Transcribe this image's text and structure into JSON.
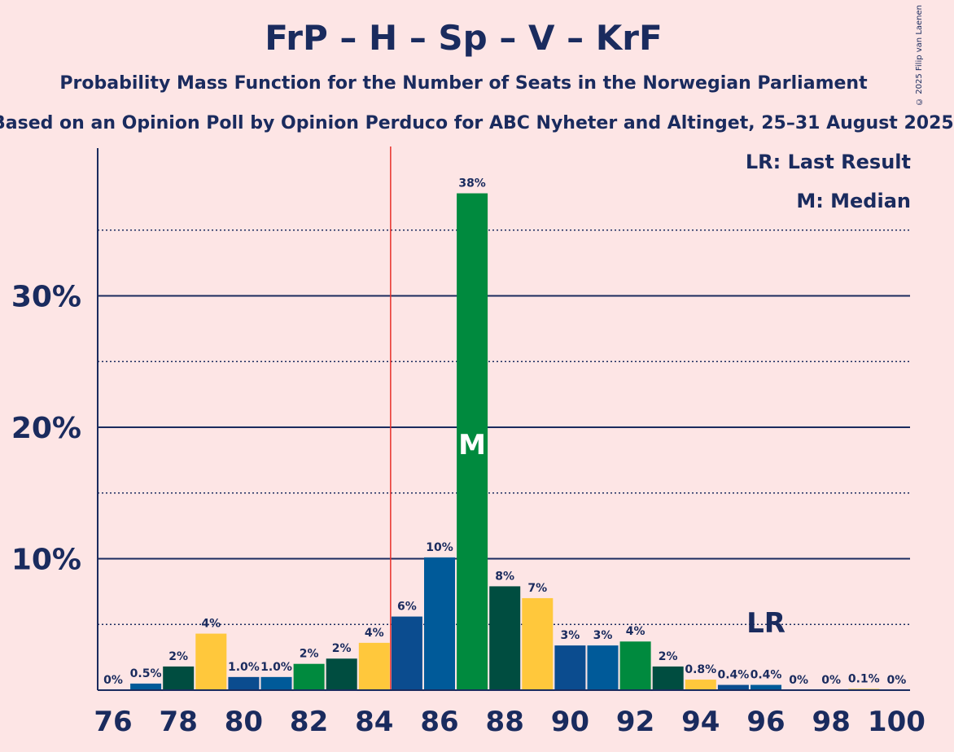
{
  "title": "FrP – H – Sp – V – KrF",
  "subtitle": "Probability Mass Function for the Number of Seats in the Norwegian Parliament",
  "subtitle2": "Based on an Opinion Poll by Opinion Perduco for ABC Nyheter and Altinget, 25–31 August 2025",
  "copyright": "© 2025 Filip van Laenen",
  "legend": {
    "last_result": "LR: Last Result",
    "median": "M: Median"
  },
  "markers": {
    "median_label": "M",
    "median_seat": 87,
    "last_result_label": "LR",
    "last_result_seat": 96,
    "majority_line_seat": 84.5
  },
  "colors": {
    "background": "#fde5e5",
    "axis": "#1a2b5e",
    "majority_line": "#e8302a",
    "FrP": "#0b4c8f",
    "H": "#005a99",
    "Sp": "#008a3e",
    "KrF": "#ffc83c",
    "V": "#004d40"
  },
  "chart_data": {
    "type": "bar",
    "xlabel": "",
    "ylabel": "",
    "ylim": [
      0,
      41
    ],
    "yticks": [
      {
        "value": 10,
        "label": "10%"
      },
      {
        "value": 20,
        "label": "20%"
      },
      {
        "value": 30,
        "label": "30%"
      }
    ],
    "minor_gridlines": [
      5,
      15,
      25,
      35
    ],
    "xticks": [
      76,
      78,
      80,
      82,
      84,
      86,
      88,
      90,
      92,
      94,
      96,
      98,
      100
    ],
    "bars": [
      {
        "x": 76,
        "value": 0,
        "label": "0%",
        "color": "#0b4c8f"
      },
      {
        "x": 77,
        "value": 0.5,
        "label": "0.5%",
        "color": "#005a99"
      },
      {
        "x": 78,
        "value": 1.8,
        "label": "2%",
        "color": "#004d40"
      },
      {
        "x": 79,
        "value": 4.3,
        "label": "4%",
        "color": "#ffc83c"
      },
      {
        "x": 80,
        "value": 1.0,
        "label": "1.0%",
        "color": "#0b4c8f"
      },
      {
        "x": 81,
        "value": 1.0,
        "label": "1.0%",
        "color": "#005a99"
      },
      {
        "x": 82,
        "value": 2.0,
        "label": "2%",
        "color": "#008a3e"
      },
      {
        "x": 83,
        "value": 2.4,
        "label": "2%",
        "color": "#004d40"
      },
      {
        "x": 84,
        "value": 3.6,
        "label": "4%",
        "color": "#ffc83c"
      },
      {
        "x": 85,
        "value": 5.6,
        "label": "6%",
        "color": "#0b4c8f"
      },
      {
        "x": 86,
        "value": 10.1,
        "label": "10%",
        "color": "#005a99"
      },
      {
        "x": 87,
        "value": 37.8,
        "label": "38%",
        "color": "#008a3e"
      },
      {
        "x": 88,
        "value": 7.9,
        "label": "8%",
        "color": "#004d40"
      },
      {
        "x": 89,
        "value": 7.0,
        "label": "7%",
        "color": "#ffc83c"
      },
      {
        "x": 90,
        "value": 3.4,
        "label": "3%",
        "color": "#0b4c8f"
      },
      {
        "x": 91,
        "value": 3.4,
        "label": "3%",
        "color": "#005a99"
      },
      {
        "x": 92,
        "value": 3.7,
        "label": "4%",
        "color": "#008a3e"
      },
      {
        "x": 93,
        "value": 1.8,
        "label": "2%",
        "color": "#004d40"
      },
      {
        "x": 94,
        "value": 0.8,
        "label": "0.8%",
        "color": "#ffc83c"
      },
      {
        "x": 95,
        "value": 0.4,
        "label": "0.4%",
        "color": "#0b4c8f"
      },
      {
        "x": 96,
        "value": 0.4,
        "label": "0.4%",
        "color": "#005a99"
      },
      {
        "x": 97,
        "value": 0,
        "label": "0%",
        "color": "#008a3e"
      },
      {
        "x": 98,
        "value": 0,
        "label": "0%",
        "color": "#004d40"
      },
      {
        "x": 99,
        "value": 0.1,
        "label": "0.1%",
        "color": "#ffc83c"
      },
      {
        "x": 100,
        "value": 0,
        "label": "0%",
        "color": "#0b4c8f"
      }
    ]
  }
}
